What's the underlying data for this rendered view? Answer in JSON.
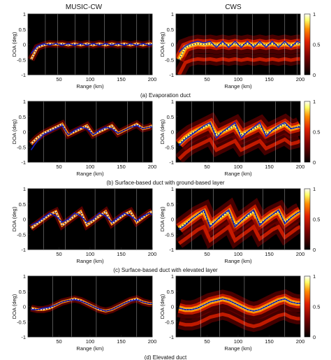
{
  "columns": {
    "left": "MUSIC-CW",
    "right": "CWS"
  },
  "colors": {
    "heat_low": "#000000",
    "heat_mid1": "#7a0000",
    "heat_mid2": "#e02000",
    "heat_mid3": "#ff8c00",
    "heat_high": "#ffff66",
    "heat_top": "#ffffff",
    "estimate": "#1020c8",
    "truth_dots": "#0a0a6a",
    "divider": "#c8c8c8"
  },
  "chart_data": [
    {
      "type": "heatmap",
      "panel": "a",
      "caption": "(a) Evaporation duct",
      "xlabel": "Range (km)",
      "ylabel": "DOA (deg)",
      "xlim": [
        0,
        200
      ],
      "ylim": [
        -1,
        1
      ],
      "xticks": [
        "50",
        "100",
        "150",
        "200"
      ],
      "yticks": [
        "-1",
        "-0.5",
        "0",
        "0.5",
        "1"
      ],
      "colorbar": {
        "ticks": [
          "0",
          "0.5",
          "1"
        ],
        "range": [
          0,
          1
        ]
      },
      "dividers_km": [
        28,
        48,
        76,
        98,
        123,
        150,
        175,
        195
      ],
      "track": {
        "x": [
          5,
          15,
          25,
          35,
          45,
          55,
          65,
          75,
          85,
          95,
          105,
          115,
          125,
          135,
          145,
          155,
          165,
          175,
          185,
          195,
          200
        ],
        "y": [
          -0.5,
          -0.1,
          -0.02,
          0.02,
          0.0,
          0.02,
          -0.02,
          0.02,
          -0.02,
          0.02,
          -0.02,
          0.02,
          -0.02,
          0.02,
          -0.02,
          0.02,
          -0.02,
          0.02,
          -0.02,
          0.02,
          0.02
        ]
      },
      "left_estimate": {
        "x": [
          5,
          15,
          25,
          35,
          45,
          55,
          65,
          75,
          85,
          95,
          105,
          115,
          125,
          135,
          145,
          155,
          165,
          175,
          185,
          195,
          200
        ],
        "y": [
          -0.3,
          -0.05,
          0.02,
          -0.02,
          0.03,
          -0.03,
          0.03,
          -0.03,
          0.03,
          -0.03,
          0.03,
          -0.03,
          0.03,
          -0.03,
          0.03,
          -0.03,
          0.03,
          -0.03,
          0.03,
          -0.03,
          0.0
        ]
      },
      "right_estimate": {
        "x": [
          5,
          15,
          25,
          35,
          45,
          55,
          65,
          75,
          85,
          95,
          105,
          115,
          125,
          135,
          145,
          155,
          165,
          175,
          185,
          195,
          200
        ],
        "y": [
          -0.25,
          -0.05,
          0.05,
          0.1,
          0.05,
          0.1,
          -0.1,
          0.1,
          -0.1,
          0.1,
          -0.1,
          0.1,
          -0.1,
          0.1,
          -0.1,
          0.1,
          -0.1,
          0.1,
          -0.1,
          0.1,
          0.05
        ]
      }
    },
    {
      "type": "heatmap",
      "panel": "b",
      "caption": "(b) Surface-based duct with ground-based layer",
      "xlabel": "Range (km)",
      "ylabel": "DOA (deg)",
      "xlim": [
        0,
        200
      ],
      "ylim": [
        -1,
        1
      ],
      "xticks": [
        "50",
        "100",
        "150",
        "200"
      ],
      "yticks": [
        "-1",
        "-0.5",
        "0",
        "0.5",
        "1"
      ],
      "colorbar": {
        "ticks": [
          "0",
          "0.5",
          "1"
        ],
        "range": [
          0,
          1
        ]
      },
      "dividers_km": [
        25,
        60,
        110,
        160,
        185
      ],
      "track": {
        "x": [
          5,
          15,
          25,
          35,
          45,
          55,
          65,
          75,
          85,
          95,
          105,
          115,
          125,
          135,
          145,
          155,
          165,
          175,
          185,
          195,
          200
        ],
        "y": [
          -0.4,
          -0.2,
          -0.05,
          0.05,
          0.15,
          0.25,
          -0.1,
          0.0,
          0.1,
          0.2,
          -0.1,
          0.0,
          0.1,
          0.2,
          -0.05,
          0.05,
          0.15,
          0.25,
          0.1,
          0.15,
          0.2
        ]
      },
      "left_estimate": {
        "x": [
          5,
          15,
          25,
          35,
          45,
          55,
          65,
          75,
          85,
          95,
          105,
          115,
          125,
          135,
          145,
          155,
          165,
          175,
          185,
          195,
          200
        ],
        "y": [
          -0.6,
          -0.3,
          -0.1,
          0.0,
          0.1,
          0.2,
          -0.1,
          0.05,
          0.15,
          0.1,
          -0.1,
          0.05,
          0.15,
          0.1,
          -0.05,
          0.05,
          0.15,
          0.2,
          0.1,
          0.15,
          0.15
        ]
      },
      "right_estimate": {
        "x": [
          5,
          15,
          25,
          35,
          45,
          55,
          65,
          75,
          85,
          95,
          105,
          115,
          125,
          135,
          145,
          155,
          165,
          175,
          185,
          195,
          200
        ],
        "y": [
          -0.45,
          -0.25,
          -0.1,
          0.05,
          0.2,
          0.3,
          -0.2,
          0.0,
          0.15,
          0.3,
          -0.2,
          0.0,
          0.15,
          0.3,
          -0.15,
          0.05,
          0.2,
          0.3,
          0.1,
          0.15,
          0.15
        ]
      }
    },
    {
      "type": "heatmap",
      "panel": "c",
      "caption": "(c) Surface-based duct with elevated layer",
      "xlabel": "Range (km)",
      "ylabel": "DOA (deg)",
      "xlim": [
        0,
        200
      ],
      "ylim": [
        -1,
        1
      ],
      "xticks": [
        "50",
        "100",
        "150",
        "200"
      ],
      "yticks": [
        "-1",
        "-0.5",
        "0",
        "0.5",
        "1"
      ],
      "colorbar": {
        "ticks": [
          "0",
          "0.5",
          "1"
        ],
        "range": [
          0,
          1
        ]
      },
      "dividers_km": [
        25,
        60,
        108,
        140,
        175
      ],
      "track": {
        "x": [
          5,
          15,
          25,
          35,
          45,
          55,
          65,
          75,
          85,
          95,
          105,
          115,
          125,
          135,
          145,
          155,
          165,
          175,
          185,
          195,
          200
        ],
        "y": [
          -0.3,
          -0.15,
          0.0,
          0.15,
          0.25,
          -0.2,
          -0.05,
          0.1,
          0.25,
          -0.2,
          -0.05,
          0.1,
          0.25,
          -0.15,
          0.0,
          0.15,
          0.25,
          -0.1,
          0.05,
          0.2,
          0.25
        ]
      },
      "left_estimate": {
        "x": [
          5,
          15,
          25,
          35,
          45,
          55,
          65,
          75,
          85,
          95,
          105,
          115,
          125,
          135,
          145,
          155,
          165,
          175,
          185,
          195,
          200
        ],
        "y": [
          -0.2,
          -0.1,
          0.05,
          0.2,
          0.1,
          -0.1,
          0.0,
          0.2,
          0.1,
          -0.1,
          0.0,
          0.2,
          0.1,
          -0.1,
          0.05,
          0.2,
          0.1,
          -0.05,
          0.1,
          0.2,
          0.15
        ]
      },
      "right_estimate": {
        "x": [
          5,
          15,
          25,
          35,
          45,
          55,
          65,
          75,
          85,
          95,
          105,
          115,
          125,
          135,
          145,
          155,
          165,
          175,
          185,
          195,
          200
        ],
        "y": [
          -0.35,
          -0.2,
          0.0,
          0.15,
          0.3,
          -0.25,
          -0.05,
          0.15,
          0.3,
          -0.25,
          -0.05,
          0.15,
          0.3,
          -0.2,
          0.0,
          0.15,
          0.3,
          -0.15,
          0.05,
          0.2,
          0.25
        ]
      }
    },
    {
      "type": "heatmap",
      "panel": "d",
      "caption": "(d) Elevated duct",
      "xlabel": "Range (km)",
      "ylabel": "DOA (deg)",
      "xlim": [
        0,
        200
      ],
      "ylim": [
        -1,
        1
      ],
      "xticks": [
        "50",
        "100",
        "150",
        "200"
      ],
      "yticks": [
        "-1",
        "-0.5",
        "0",
        "0.5",
        "1"
      ],
      "colorbar": {
        "ticks": [
          "0",
          "0.5",
          "1"
        ],
        "range": [
          0,
          1
        ]
      },
      "dividers_km": [
        40,
        70,
        110,
        175
      ],
      "track": {
        "x": [
          5,
          15,
          25,
          35,
          45,
          55,
          65,
          75,
          85,
          95,
          105,
          115,
          125,
          135,
          145,
          155,
          165,
          175,
          185,
          195,
          200
        ],
        "y": [
          -0.05,
          -0.1,
          -0.1,
          -0.05,
          0.05,
          0.15,
          0.2,
          0.25,
          0.2,
          0.1,
          0.0,
          -0.1,
          -0.15,
          -0.1,
          0.0,
          0.1,
          0.2,
          0.25,
          0.15,
          0.1,
          0.1
        ]
      },
      "left_estimate": {
        "x": [
          5,
          15,
          25,
          35,
          45,
          55,
          65,
          75,
          85,
          95,
          105,
          115,
          125,
          135,
          145,
          155,
          165,
          175,
          185,
          195,
          200
        ],
        "y": [
          -0.1,
          -0.1,
          -0.05,
          -0.02,
          0.05,
          0.15,
          0.2,
          0.22,
          0.18,
          0.1,
          0.0,
          -0.08,
          -0.15,
          -0.1,
          0.0,
          0.1,
          0.18,
          0.22,
          0.15,
          0.1,
          0.1
        ]
      },
      "right_estimate": {
        "x": [
          5,
          15,
          25,
          35,
          45,
          55,
          65,
          75,
          85,
          95,
          105,
          115,
          125,
          135,
          145,
          155,
          165,
          175,
          185,
          195,
          200
        ],
        "y": [
          -0.05,
          -0.1,
          -0.1,
          -0.05,
          0.05,
          0.15,
          0.2,
          0.25,
          0.2,
          0.1,
          0.0,
          -0.1,
          -0.15,
          -0.1,
          0.0,
          0.1,
          0.2,
          0.25,
          0.15,
          0.1,
          0.1
        ]
      }
    }
  ]
}
